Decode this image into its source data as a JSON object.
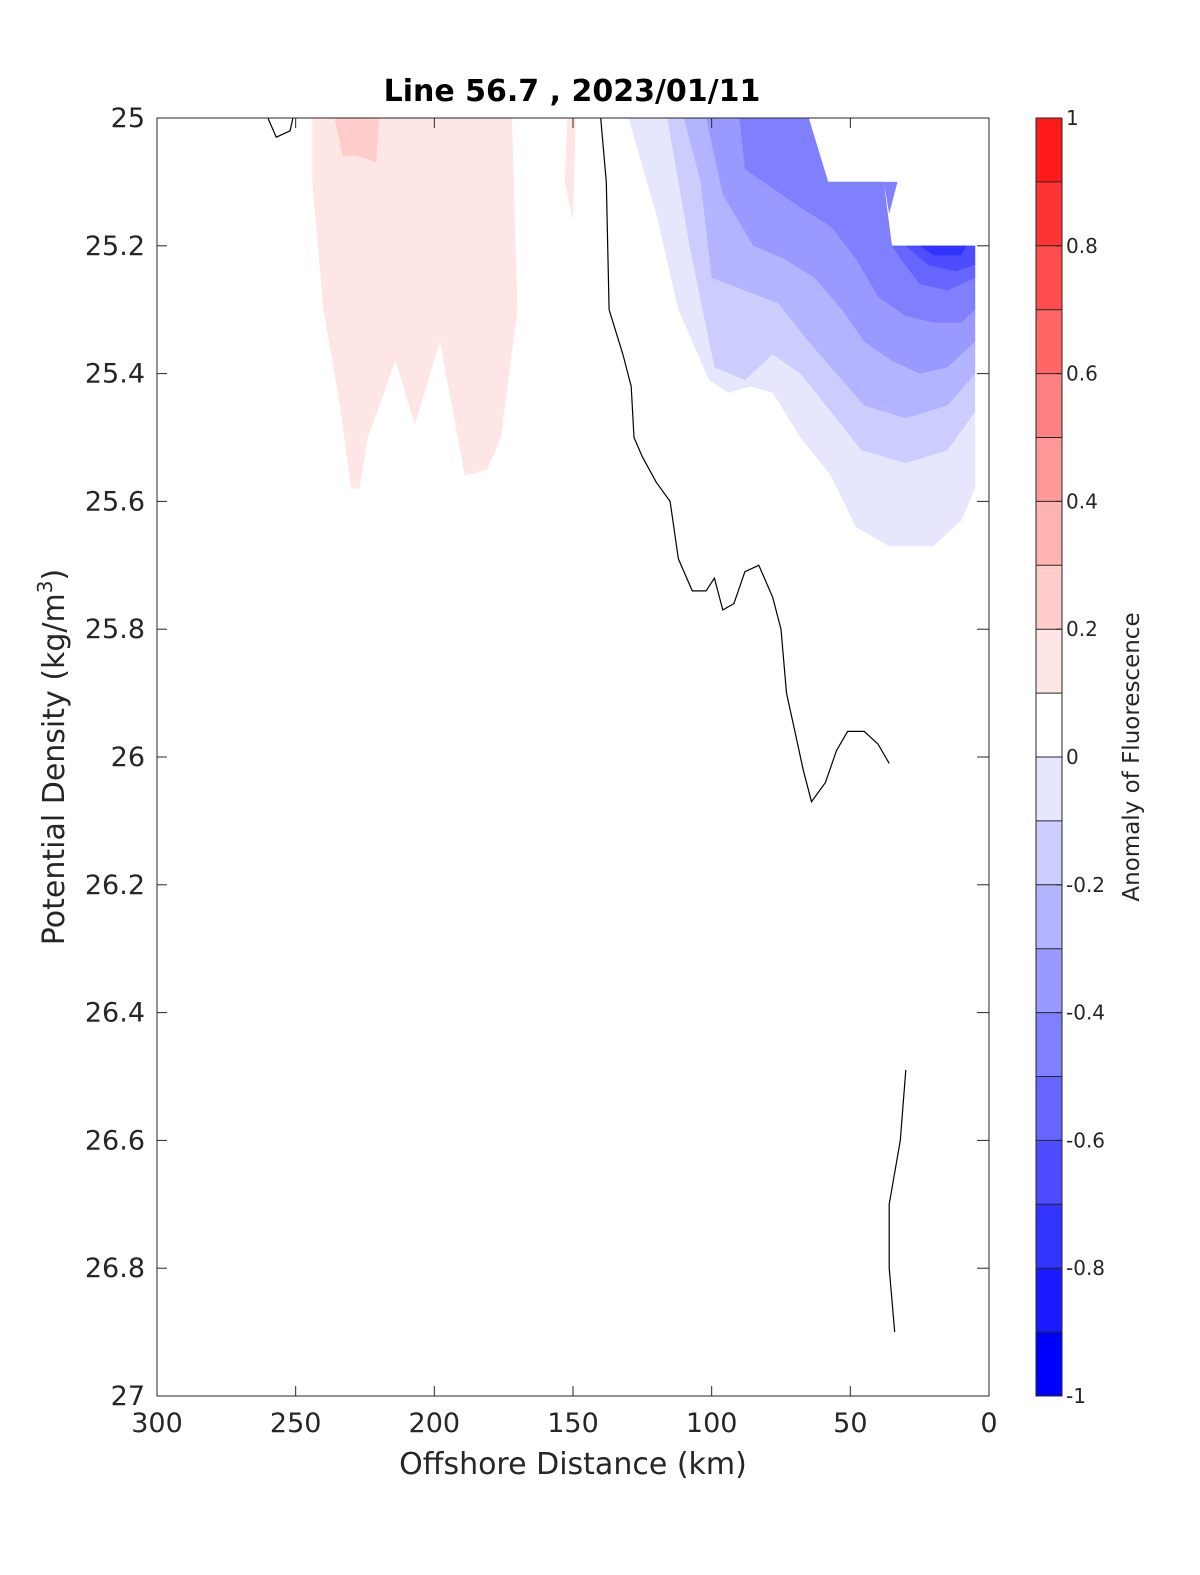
{
  "chart_data": {
    "type": "heatmap",
    "subtype": "filled-contour",
    "title": "Line 56.7 , 2023/01/11",
    "xlabel": "Offshore Distance (km)",
    "ylabel": "Potential Density (kg/m",
    "ylabel_sup": "3",
    "ylabel_close": ")",
    "xlim": [
      300,
      0
    ],
    "x_reversed": true,
    "ylim": [
      25,
      27
    ],
    "y_reversed": true,
    "x_ticks": [
      300,
      250,
      200,
      150,
      100,
      50,
      0
    ],
    "y_ticks": [
      25,
      25.2,
      25.4,
      25.6,
      25.8,
      26,
      26.2,
      26.4,
      26.6,
      26.8,
      27
    ],
    "y_tick_labels": [
      "25",
      "25.2",
      "25.4",
      "25.6",
      "25.8",
      "26",
      "26.2",
      "26.4",
      "26.6",
      "26.8",
      "27"
    ],
    "grid": false,
    "colorbar": {
      "label": "Anomaly of Fluorescence",
      "limits": [
        -1,
        1
      ],
      "levels": [
        -1,
        -0.9,
        -0.8,
        -0.7,
        -0.6,
        -0.5,
        -0.4,
        -0.3,
        -0.2,
        -0.1,
        0,
        0.1,
        0.2,
        0.3,
        0.4,
        0.5,
        0.6,
        0.7,
        0.8,
        0.9,
        1
      ],
      "ticks": [
        -1,
        -0.8,
        -0.6,
        -0.4,
        -0.2,
        0,
        0.2,
        0.4,
        0.6,
        0.8,
        1
      ],
      "tick_labels": [
        "-1",
        "-0.8",
        "-0.6",
        "-0.4",
        "-0.2",
        "0",
        "0.2",
        "0.4",
        "0.6",
        "0.8",
        "1"
      ],
      "colors": [
        "#0000ff",
        "#1a1aff",
        "#3333ff",
        "#4d4dff",
        "#6666ff",
        "#8080ff",
        "#9999ff",
        "#b3b3ff",
        "#ccccff",
        "#e6e6ff",
        "#ffffff",
        "#ffffff",
        "#ffe6e6",
        "#ffcccc",
        "#ffb3b3",
        "#ff9999",
        "#ff8080",
        "#ff6666",
        "#ff4d4d",
        "#ff3333",
        "#ff1a1a",
        "#ff0000"
      ]
    },
    "regions": [
      {
        "level": 0.1,
        "color": "#ffe6e6",
        "points": [
          [
            244,
            25
          ],
          [
            172,
            25
          ],
          [
            170,
            25.3
          ],
          [
            176,
            25.5
          ],
          [
            181,
            25.55
          ],
          [
            189,
            25.56
          ],
          [
            198,
            25.35
          ],
          [
            207,
            25.48
          ],
          [
            214,
            25.38
          ],
          [
            224,
            25.5
          ],
          [
            227,
            25.58
          ],
          [
            230,
            25.58
          ],
          [
            234,
            25.45
          ],
          [
            240,
            25.3
          ],
          [
            244,
            25.1
          ]
        ]
      },
      {
        "level": 0.1,
        "color": "#ffe6e6",
        "points": [
          [
            152,
            25
          ],
          [
            149,
            25
          ],
          [
            150,
            25.16
          ],
          [
            153,
            25.1
          ]
        ]
      },
      {
        "level": 0.2,
        "color": "#ffcccc",
        "points": [
          [
            236,
            25
          ],
          [
            220,
            25
          ],
          [
            221,
            25.07
          ],
          [
            227,
            25.06
          ],
          [
            233,
            25.06
          ]
        ]
      },
      {
        "level": -0.1,
        "color": "#e6e6ff",
        "points": [
          [
            130,
            25
          ],
          [
            120,
            25.15
          ],
          [
            112,
            25.3
          ],
          [
            101,
            25.41
          ],
          [
            94,
            25.43
          ],
          [
            86,
            25.42
          ],
          [
            78,
            25.43
          ],
          [
            68,
            25.5
          ],
          [
            57,
            25.56
          ],
          [
            48,
            25.64
          ],
          [
            36,
            25.67
          ],
          [
            20,
            25.67
          ],
          [
            10,
            25.63
          ],
          [
            5,
            25.58
          ],
          [
            5,
            25.2
          ],
          [
            35,
            25.2
          ],
          [
            38,
            25.1
          ],
          [
            58,
            25.1
          ],
          [
            65,
            25
          ]
        ]
      },
      {
        "level": -0.2,
        "color": "#ccccff",
        "points": [
          [
            116,
            25
          ],
          [
            108,
            25.2
          ],
          [
            99,
            25.39
          ],
          [
            88,
            25.41
          ],
          [
            78,
            25.37
          ],
          [
            68,
            25.4
          ],
          [
            57,
            25.46
          ],
          [
            46,
            25.52
          ],
          [
            30,
            25.54
          ],
          [
            15,
            25.52
          ],
          [
            5,
            25.46
          ],
          [
            5,
            25.2
          ],
          [
            35,
            25.2
          ],
          [
            38,
            25.1
          ],
          [
            58,
            25.1
          ],
          [
            65,
            25
          ]
        ]
      },
      {
        "level": -0.3,
        "color": "#b3b3ff",
        "points": [
          [
            110,
            25
          ],
          [
            104,
            25.1
          ],
          [
            100,
            25.25
          ],
          [
            88,
            25.27
          ],
          [
            76,
            25.29
          ],
          [
            65,
            25.35
          ],
          [
            55,
            25.4
          ],
          [
            45,
            25.45
          ],
          [
            30,
            25.47
          ],
          [
            15,
            25.45
          ],
          [
            5,
            25.4
          ],
          [
            5,
            25.2
          ],
          [
            35,
            25.2
          ],
          [
            38,
            25.1
          ],
          [
            58,
            25.1
          ],
          [
            65,
            25
          ]
        ]
      },
      {
        "level": -0.4,
        "color": "#9999ff",
        "points": [
          [
            102,
            25
          ],
          [
            96,
            25.12
          ],
          [
            85,
            25.2
          ],
          [
            74,
            25.22
          ],
          [
            63,
            25.25
          ],
          [
            53,
            25.3
          ],
          [
            45,
            25.35
          ],
          [
            35,
            25.38
          ],
          [
            25,
            25.4
          ],
          [
            15,
            25.39
          ],
          [
            5,
            25.35
          ],
          [
            5,
            25.2
          ],
          [
            35,
            25.2
          ],
          [
            38,
            25.1
          ],
          [
            58,
            25.1
          ],
          [
            65,
            25
          ]
        ]
      },
      {
        "level": -0.5,
        "color": "#8080ff",
        "points": [
          [
            90,
            25
          ],
          [
            88,
            25.08
          ],
          [
            78,
            25.11
          ],
          [
            68,
            25.14
          ],
          [
            57,
            25.17
          ],
          [
            48,
            25.22
          ],
          [
            40,
            25.28
          ],
          [
            30,
            25.31
          ],
          [
            20,
            25.32
          ],
          [
            10,
            25.32
          ],
          [
            5,
            25.3
          ],
          [
            5,
            25.2
          ],
          [
            35,
            25.2
          ],
          [
            38,
            25.1
          ],
          [
            58,
            25.1
          ],
          [
            65,
            25
          ]
        ]
      },
      {
        "level": -0.6,
        "color": "#6666ff",
        "points": [
          [
            35,
            25.2
          ],
          [
            5,
            25.2
          ],
          [
            5,
            25.25
          ],
          [
            15,
            25.27
          ],
          [
            25,
            25.26
          ],
          [
            32,
            25.22
          ]
        ]
      },
      {
        "level": -0.7,
        "color": "#4d4dff",
        "points": [
          [
            30,
            25.2
          ],
          [
            5,
            25.2
          ],
          [
            5,
            25.23
          ],
          [
            12,
            25.24
          ],
          [
            22,
            25.23
          ]
        ]
      },
      {
        "level": -0.8,
        "color": "#3333ff",
        "points": [
          [
            25,
            25.2
          ],
          [
            8,
            25.2
          ],
          [
            10,
            25.215
          ],
          [
            20,
            25.215
          ]
        ]
      },
      {
        "level": -0.5,
        "color": "#8080ff",
        "points": [
          [
            38,
            25.1
          ],
          [
            33,
            25.1
          ],
          [
            36,
            25.15
          ]
        ]
      }
    ],
    "zero_contours": [
      [
        [
          260,
          25
        ],
        [
          257,
          25.03
        ],
        [
          252,
          25.02
        ],
        [
          251,
          25
        ]
      ],
      [
        [
          140,
          25
        ],
        [
          138,
          25.1
        ],
        [
          137,
          25.3
        ],
        [
          132,
          25.37
        ],
        [
          129,
          25.42
        ],
        [
          128,
          25.5
        ],
        [
          125,
          25.53
        ],
        [
          120,
          25.57
        ],
        [
          115,
          25.6
        ],
        [
          112,
          25.69
        ],
        [
          107,
          25.74
        ],
        [
          102,
          25.74
        ],
        [
          99,
          25.72
        ],
        [
          96,
          25.77
        ],
        [
          92,
          25.76
        ],
        [
          88,
          25.71
        ],
        [
          83,
          25.7
        ],
        [
          78,
          25.75
        ],
        [
          75,
          25.8
        ],
        [
          73,
          25.9
        ],
        [
          70,
          25.96
        ],
        [
          67,
          26.02
        ],
        [
          64,
          26.07
        ],
        [
          59,
          26.04
        ],
        [
          55,
          25.99
        ],
        [
          51,
          25.96
        ],
        [
          45,
          25.96
        ],
        [
          40,
          25.98
        ],
        [
          36,
          26.01
        ]
      ],
      [
        [
          30,
          26.49
        ],
        [
          32,
          26.6
        ],
        [
          36,
          26.7
        ],
        [
          36,
          26.8
        ],
        [
          34,
          26.9
        ]
      ]
    ]
  }
}
